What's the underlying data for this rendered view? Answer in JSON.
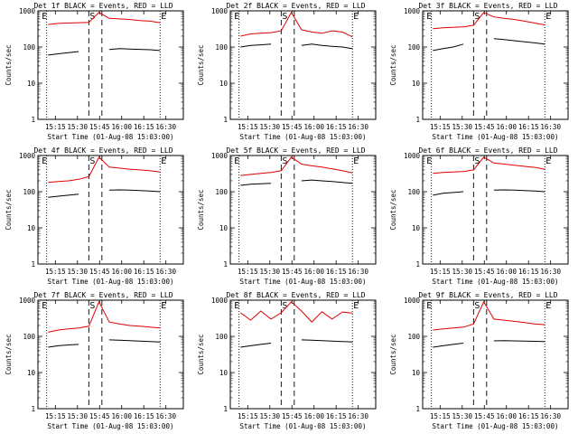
{
  "chart_data": [
    {
      "type": "line",
      "title": "Det 1f BLACK = Events, RED = LLD",
      "xlabel": "Start Time (01-Aug-08 15:03:00)",
      "ylabel": "Counts/sec",
      "xticks": [
        "15:15",
        "15:30",
        "15:45",
        "16:00",
        "16:15",
        "16:30"
      ],
      "yticks": [
        "1",
        "10",
        "100",
        "1000"
      ],
      "ylim": [
        1,
        1000
      ],
      "markers": [
        "E",
        "S",
        "E"
      ],
      "series": [
        {
          "name": "RED = LLD",
          "color": "#e00000",
          "values": [
            420,
            450,
            460,
            470,
            480,
            900,
            620,
            600,
            580,
            540,
            520,
            470
          ]
        },
        {
          "name": "BLACK = Events",
          "color": "#000000",
          "values": [
            60,
            65,
            70,
            75,
            null,
            null,
            85,
            90,
            88,
            86,
            84,
            80
          ]
        }
      ]
    },
    {
      "type": "line",
      "title": "Det 2f BLACK = Events, RED = LLD",
      "xlabel": "Start Time (01-Aug-08 15:03:00)",
      "ylabel": "Counts/sec",
      "xticks": [
        "15:15",
        "15:30",
        "15:45",
        "16:00",
        "16:15",
        "16:30"
      ],
      "yticks": [
        "1",
        "10",
        "100",
        "1000"
      ],
      "ylim": [
        1,
        1000
      ],
      "markers": [
        "E",
        "S",
        "E"
      ],
      "series": [
        {
          "name": "RED = LLD",
          "color": "#e00000",
          "values": [
            200,
            230,
            240,
            250,
            280,
            900,
            300,
            260,
            240,
            280,
            260,
            190
          ]
        },
        {
          "name": "BLACK = Events",
          "color": "#000000",
          "values": [
            100,
            110,
            115,
            120,
            null,
            null,
            110,
            120,
            110,
            105,
            100,
            90
          ]
        }
      ]
    },
    {
      "type": "line",
      "title": "Det 3f BLACK = Events, RED = LLD",
      "xlabel": "Start Time (01-Aug-08 15:03:00)",
      "ylabel": "Counts/sec",
      "xticks": [
        "15:15",
        "15:30",
        "15:45",
        "16:00",
        "16:15",
        "16:30"
      ],
      "yticks": [
        "1",
        "10",
        "100",
        "1000"
      ],
      "ylim": [
        1,
        1000
      ],
      "markers": [
        "E",
        "S",
        "E"
      ],
      "series": [
        {
          "name": "RED = LLD",
          "color": "#e00000",
          "values": [
            320,
            340,
            350,
            360,
            400,
            900,
            680,
            620,
            580,
            520,
            460,
            410
          ]
        },
        {
          "name": "BLACK = Events",
          "color": "#000000",
          "values": [
            80,
            90,
            100,
            120,
            null,
            null,
            170,
            160,
            150,
            140,
            130,
            120
          ]
        }
      ]
    },
    {
      "type": "line",
      "title": "Det 4f BLACK = Events, RED = LLD",
      "xlabel": "Start Time (01-Aug-08 15:03:00)",
      "ylabel": "Counts/sec",
      "xticks": [
        "15:15",
        "15:30",
        "15:45",
        "16:00",
        "16:15",
        "16:30"
      ],
      "yticks": [
        "1",
        "10",
        "100",
        "1000"
      ],
      "ylim": [
        1,
        1000
      ],
      "markers": [
        "E",
        "S",
        "E"
      ],
      "series": [
        {
          "name": "RED = LLD",
          "color": "#e00000",
          "values": [
            180,
            190,
            200,
            220,
            260,
            900,
            480,
            450,
            420,
            400,
            380,
            350
          ]
        },
        {
          "name": "BLACK = Events",
          "color": "#000000",
          "values": [
            70,
            75,
            80,
            85,
            null,
            null,
            110,
            112,
            110,
            108,
            105,
            100
          ]
        }
      ]
    },
    {
      "type": "line",
      "title": "Det 5f BLACK = Events, RED = LLD",
      "xlabel": "Start Time (01-Aug-08 15:03:00)",
      "ylabel": "Counts/sec",
      "xticks": [
        "15:15",
        "15:30",
        "15:45",
        "16:00",
        "16:15",
        "16:30"
      ],
      "yticks": [
        "1",
        "10",
        "100",
        "1000"
      ],
      "ylim": [
        1,
        1000
      ],
      "markers": [
        "E",
        "S",
        "E"
      ],
      "series": [
        {
          "name": "RED = LLD",
          "color": "#e00000",
          "values": [
            280,
            300,
            320,
            340,
            380,
            900,
            580,
            520,
            480,
            430,
            380,
            330
          ]
        },
        {
          "name": "BLACK = Events",
          "color": "#000000",
          "values": [
            150,
            160,
            165,
            170,
            null,
            null,
            200,
            210,
            200,
            190,
            180,
            170
          ]
        }
      ]
    },
    {
      "type": "line",
      "title": "Det 6f BLACK = Events, RED = LLD",
      "xlabel": "Start Time (01-Aug-08 15:03:00)",
      "ylabel": "Counts/sec",
      "xticks": [
        "15:15",
        "15:30",
        "15:45",
        "16:00",
        "16:15",
        "16:30"
      ],
      "yticks": [
        "1",
        "10",
        "100",
        "1000"
      ],
      "ylim": [
        1,
        1000
      ],
      "markers": [
        "E",
        "S",
        "E"
      ],
      "series": [
        {
          "name": "RED = LLD",
          "color": "#e00000",
          "values": [
            320,
            340,
            350,
            360,
            400,
            900,
            620,
            580,
            540,
            500,
            470,
            420
          ]
        },
        {
          "name": "BLACK = Events",
          "color": "#000000",
          "values": [
            80,
            90,
            95,
            100,
            null,
            null,
            110,
            112,
            110,
            108,
            105,
            100
          ]
        }
      ]
    },
    {
      "type": "line",
      "title": "Det 7f BLACK = Events, RED = LLD",
      "xlabel": "Start Time (01-Aug-08 15:03:00)",
      "ylabel": "Counts/sec",
      "xticks": [
        "15:15",
        "15:30",
        "15:45",
        "16:00",
        "16:15",
        "16:30"
      ],
      "yticks": [
        "1",
        "10",
        "100",
        "1000"
      ],
      "ylim": [
        1,
        1000
      ],
      "markers": [
        "E",
        "S",
        "E"
      ],
      "series": [
        {
          "name": "RED = LLD",
          "color": "#e00000",
          "values": [
            130,
            150,
            160,
            170,
            190,
            900,
            250,
            220,
            200,
            190,
            180,
            170
          ]
        },
        {
          "name": "BLACK = Events",
          "color": "#000000",
          "values": [
            50,
            55,
            58,
            60,
            null,
            null,
            80,
            78,
            76,
            74,
            72,
            70
          ]
        }
      ]
    },
    {
      "type": "line",
      "title": "Det 8f BLACK = Events, RED = LLD",
      "xlabel": "Start Time (01-Aug-08 15:03:00)",
      "ylabel": "Counts/sec",
      "xticks": [
        "15:15",
        "15:30",
        "15:45",
        "16:00",
        "16:15",
        "16:30"
      ],
      "yticks": [
        "1",
        "10",
        "100",
        "1000"
      ],
      "ylim": [
        1,
        1000
      ],
      "markers": [
        "E",
        "S",
        "E"
      ],
      "series": [
        {
          "name": "RED = LLD",
          "color": "#e00000",
          "values": [
            450,
            280,
            500,
            300,
            450,
            900,
            500,
            250,
            480,
            300,
            470,
            440
          ]
        },
        {
          "name": "BLACK = Events",
          "color": "#000000",
          "values": [
            50,
            55,
            60,
            65,
            null,
            null,
            80,
            78,
            76,
            74,
            72,
            70
          ]
        }
      ]
    },
    {
      "type": "line",
      "title": "Det 9f BLACK = Events, RED = LLD",
      "xlabel": "Start Time (01-Aug-08 15:03:00)",
      "ylabel": "Counts/sec",
      "xticks": [
        "15:15",
        "15:30",
        "15:45",
        "16:00",
        "16:15",
        "16:30"
      ],
      "yticks": [
        "1",
        "10",
        "100",
        "1000"
      ],
      "ylim": [
        1,
        1000
      ],
      "markers": [
        "E",
        "S",
        "E"
      ],
      "series": [
        {
          "name": "RED = LLD",
          "color": "#e00000",
          "values": [
            150,
            160,
            170,
            180,
            220,
            900,
            300,
            280,
            260,
            240,
            220,
            210
          ]
        },
        {
          "name": "BLACK = Events",
          "color": "#000000",
          "values": [
            50,
            55,
            60,
            65,
            null,
            null,
            75,
            76,
            75,
            74,
            73,
            72
          ]
        }
      ]
    }
  ]
}
